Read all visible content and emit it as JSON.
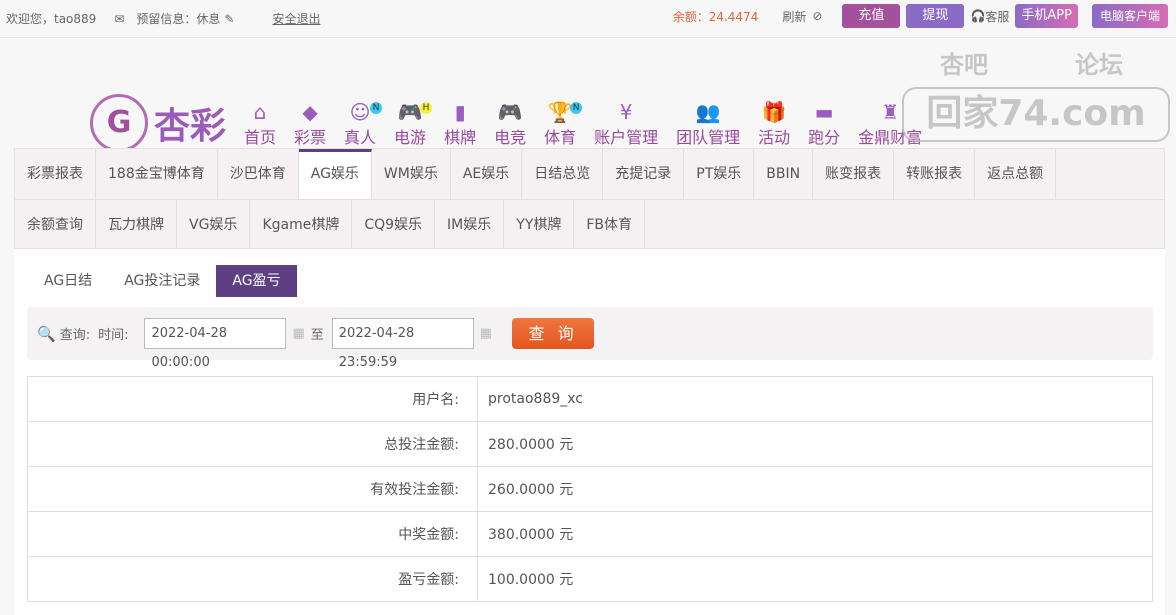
{
  "topbar": {
    "welcome": "欢迎您，tao889",
    "mail_icon": "mail-icon",
    "reserved": "预留信息：休息",
    "logout": "安全退出",
    "balance": "余额：24.4474",
    "refresh": "刷新",
    "deposit": "充值",
    "withdraw": "提现",
    "service": "客服",
    "mobile_app": "手机APP",
    "pc_client": "电脑客户端"
  },
  "logo": {
    "name": "杏彩"
  },
  "nav": [
    {
      "label": "首页",
      "icon": "home-icon",
      "glyph": "⌂"
    },
    {
      "label": "彩票",
      "icon": "ticket-icon",
      "glyph": "◆"
    },
    {
      "label": "真人",
      "icon": "woman-icon",
      "glyph": "☺",
      "badge": "N"
    },
    {
      "label": "电游",
      "icon": "gamepad-icon",
      "glyph": "🎮",
      "badge": "H"
    },
    {
      "label": "棋牌",
      "icon": "cards-icon",
      "glyph": "▮"
    },
    {
      "label": "电竞",
      "icon": "gamepad-icon",
      "glyph": "🎮"
    },
    {
      "label": "体育",
      "icon": "trophy-icon",
      "glyph": "🏆",
      "badge": "N"
    },
    {
      "label": "账户管理",
      "icon": "yen-icon",
      "glyph": "¥"
    },
    {
      "label": "团队管理",
      "icon": "team-icon",
      "glyph": "👥"
    },
    {
      "label": "活动",
      "icon": "gift-icon",
      "glyph": "🎁"
    },
    {
      "label": "跑分",
      "icon": "run-icon",
      "glyph": "▬"
    },
    {
      "label": "金鼎财富",
      "icon": "chair-icon",
      "glyph": "♜"
    }
  ],
  "watermark": {
    "top_left": "杏吧",
    "top_right": "论坛",
    "main": "回家74.com"
  },
  "tabs_row1": [
    "彩票报表",
    "188金宝博体育",
    "沙巴体育",
    "AG娱乐",
    "WM娱乐",
    "AE娱乐",
    "日结总览",
    "充提记录",
    "PT娱乐",
    "BBIN",
    "账变报表",
    "转账报表",
    "返点总额"
  ],
  "tabs_row2": [
    "余额查询",
    "瓦力棋牌",
    "VG娱乐",
    "Kgame棋牌",
    "CQ9娱乐",
    "IM娱乐",
    "YY棋牌",
    "FB体育"
  ],
  "active_tab": "AG娱乐",
  "subtabs": [
    "AG日结",
    "AG投注记录",
    "AG盈亏"
  ],
  "active_subtab": "AG盈亏",
  "search": {
    "label": "查询:",
    "time_label": "时间:",
    "start": "2022-04-28 00:00:00",
    "to": "至",
    "end": "2022-04-28 23:59:59",
    "button": "查 询"
  },
  "result": [
    {
      "label": "用户名:",
      "value": "protao889_xc"
    },
    {
      "label": "总投注金额:",
      "value": "280.0000 元"
    },
    {
      "label": "有效投注金额:",
      "value": "260.0000 元"
    },
    {
      "label": "中奖金额:",
      "value": "380.0000 元"
    },
    {
      "label": "盈亏金额:",
      "value": "100.0000 元"
    }
  ],
  "colors": {
    "primary": "#5e3f82",
    "deposit": "#a3519a",
    "withdraw": "#8a6cc6",
    "query": "#e8602a",
    "balance": "#e0653a"
  }
}
